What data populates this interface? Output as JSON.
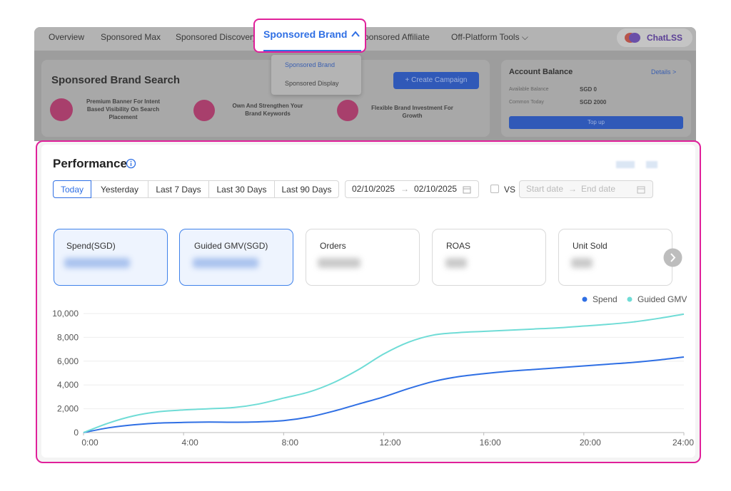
{
  "nav": {
    "items": [
      "Overview",
      "Sponsored Max",
      "Sponsored Discovery",
      "Sponsored Affiliate",
      "Off-Platform Tools"
    ],
    "active": "Sponsored Brand",
    "chat": "ChatLSS"
  },
  "dropdown": {
    "items": [
      "Sponsored Brand",
      "Sponsored Display"
    ]
  },
  "banner": {
    "title": "Sponsored Brand Search",
    "features": [
      "Premium Banner For Intent Based Visibility On Search Placement",
      "Own And Strengthen Your Brand Keywords",
      "Flexible Brand Investment For Growth"
    ],
    "button": "+ Create Campaign"
  },
  "account": {
    "title": "Account Balance",
    "details": "Details >",
    "rows": [
      [
        "Available Balance",
        "SGD 0"
      ],
      [
        "Common Today",
        "SGD 2000"
      ]
    ],
    "button": "Top up"
  },
  "performance": {
    "title": "Performance",
    "tabs": [
      "Today",
      "Yesterday",
      "Last 7 Days",
      "Last 30 Days",
      "Last 90 Days"
    ],
    "date_range": [
      "02/10/2025",
      "→",
      "02/10/2025"
    ],
    "vs": "VS",
    "compare_range": [
      "Start date",
      "→",
      "End date"
    ],
    "metrics": [
      "Spend(SGD)",
      "Guided GMV(SGD)",
      "Orders",
      "ROAS",
      "Unit Sold"
    ]
  },
  "chart_data": {
    "type": "line",
    "x": [
      0,
      1,
      2,
      3,
      4,
      5,
      6,
      7,
      8,
      9,
      10,
      11,
      12,
      13,
      14,
      15,
      16,
      17,
      18,
      19,
      20,
      21,
      22,
      23,
      24
    ],
    "series": [
      {
        "name": "Spend",
        "color": "#2f6fe4",
        "values": [
          0,
          400,
          650,
          800,
          850,
          880,
          870,
          900,
          1000,
          1300,
          1800,
          2400,
          3000,
          3700,
          4300,
          4700,
          4950,
          5150,
          5300,
          5450,
          5600,
          5750,
          5900,
          6100,
          6350
        ]
      },
      {
        "name": "Guided GMV",
        "color": "#6fdcd6",
        "values": [
          0,
          800,
          1400,
          1750,
          1900,
          2000,
          2100,
          2400,
          2900,
          3400,
          4200,
          5300,
          6600,
          7600,
          8200,
          8400,
          8500,
          8600,
          8700,
          8800,
          8950,
          9100,
          9300,
          9600,
          9950
        ]
      }
    ],
    "xlim": [
      0,
      24
    ],
    "xticks": [
      {
        "value": 0,
        "label": "0:00"
      },
      {
        "value": 4,
        "label": "4:00"
      },
      {
        "value": 8,
        "label": "8:00"
      },
      {
        "value": 12,
        "label": "12:00"
      },
      {
        "value": 16,
        "label": "16:00"
      },
      {
        "value": 20,
        "label": "20:00"
      },
      {
        "value": 24,
        "label": "24:00"
      }
    ],
    "ylim": [
      0,
      10000
    ],
    "yticks": [
      0,
      {
        "value": 2000,
        "label": "2,000"
      },
      {
        "value": 4000,
        "label": "4,000"
      },
      {
        "value": 6000,
        "label": "6,000"
      },
      {
        "value": 8000,
        "label": "8,000"
      },
      {
        "value": 10000,
        "label": "10,000"
      }
    ],
    "grid": true
  }
}
